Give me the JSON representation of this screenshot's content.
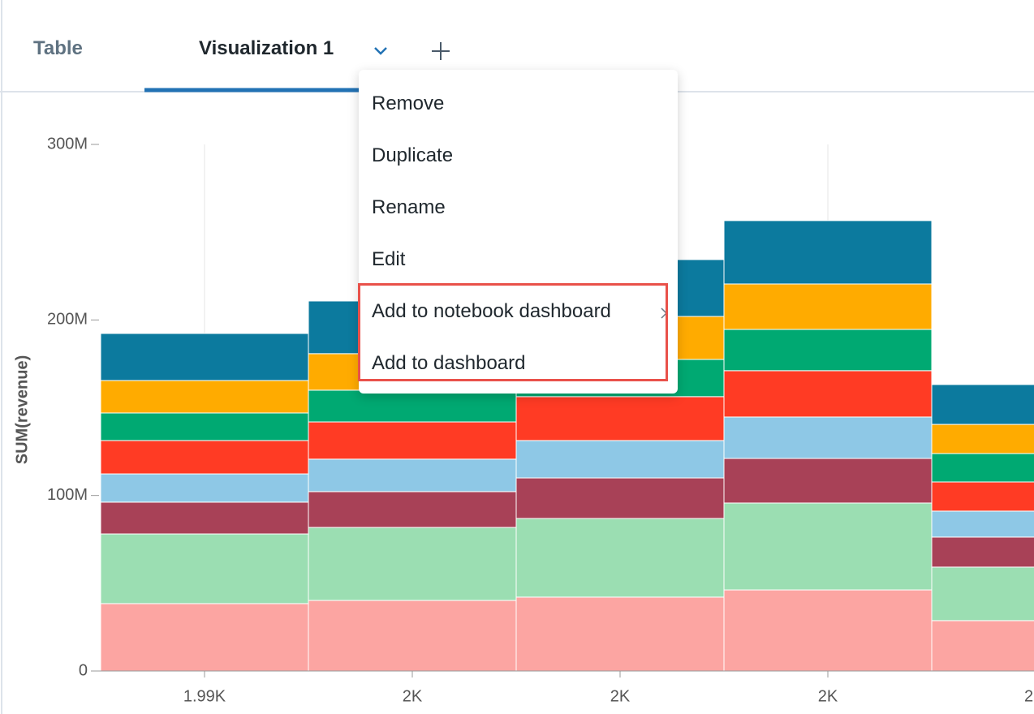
{
  "tabs": [
    "Table",
    "Visualization 1"
  ],
  "menu": {
    "items": [
      "Remove",
      "Duplicate",
      "Rename",
      "Edit",
      "Add to notebook dashboard",
      "Add to dashboard"
    ]
  },
  "chart_data": {
    "type": "bar",
    "stacked": true,
    "y_label": "SUM(revenue)",
    "categories": [
      "1.99K",
      "2K",
      "2K",
      "2K",
      "2"
    ],
    "series": [
      {
        "color": "#fca5a2",
        "values": [
          38400000,
          40200000,
          42100000,
          46200000,
          28700000
        ]
      },
      {
        "color": "#9bdeb2",
        "values": [
          39700000,
          41600000,
          44800000,
          49500000,
          30500000
        ]
      },
      {
        "color": "#a84157",
        "values": [
          18100000,
          20400000,
          23100000,
          25400000,
          17100000
        ]
      },
      {
        "color": "#8ec8e6",
        "values": [
          16100000,
          18500000,
          21300000,
          23600000,
          14800000
        ]
      },
      {
        "color": "#ff3b24",
        "values": [
          19000000,
          21200000,
          25000000,
          26400000,
          16600000
        ]
      },
      {
        "color": "#00a972",
        "values": [
          15700000,
          18100000,
          21200000,
          23500000,
          16200000
        ]
      },
      {
        "color": "#ffab00",
        "values": [
          18500000,
          20800000,
          24500000,
          25900000,
          16600000
        ]
      },
      {
        "color": "#0c7a9e",
        "values": [
          26800000,
          30000000,
          32400000,
          36100000,
          22700000
        ]
      }
    ],
    "ylim": [
      0,
      300000000
    ],
    "yticks": [
      0,
      {
        "value": 100000000,
        "label": "100M"
      },
      {
        "value": 200000000,
        "label": "200M"
      },
      {
        "value": 300000000,
        "label": "300M"
      }
    ],
    "grid": true
  }
}
